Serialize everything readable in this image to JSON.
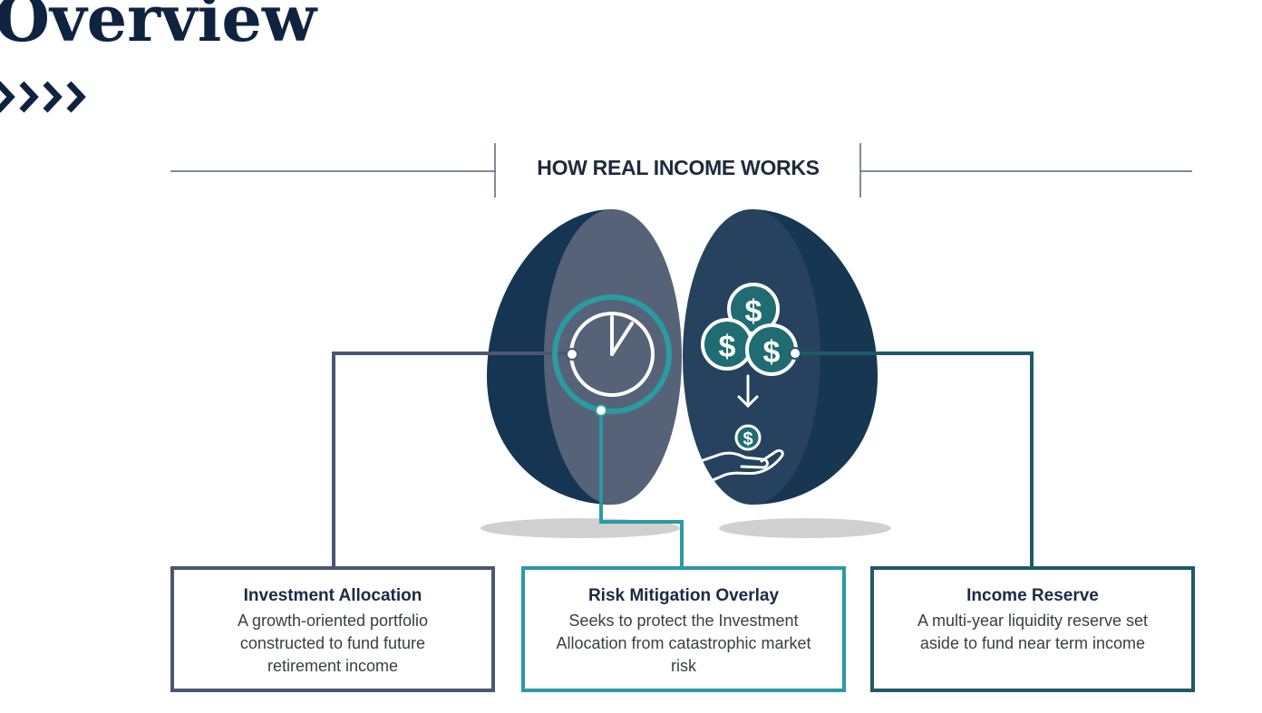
{
  "title": "Overview",
  "section_heading": "HOW REAL INCOME WORKS",
  "colors": {
    "navy": "#0f2340",
    "slate": "#4d5670",
    "teal": "#2a9aa3",
    "dark_teal": "#1f5a66",
    "egg_dark": "#12304a"
  },
  "icons": {
    "left_egg": "clock-icon",
    "right_egg_top": "coins-stack-icon",
    "right_egg_bottom": "hand-holding-coin-icon"
  },
  "coin_symbol": "$",
  "boxes": [
    {
      "title": "Investment Allocation",
      "description": "A growth-oriented portfolio constructed to fund future retirement income"
    },
    {
      "title": "Risk Mitigation Overlay",
      "description": "Seeks to protect the Investment Allocation from catastrophic market risk"
    },
    {
      "title": "Income Reserve",
      "description": "A multi-year liquidity reserve set aside to fund near term income"
    }
  ]
}
